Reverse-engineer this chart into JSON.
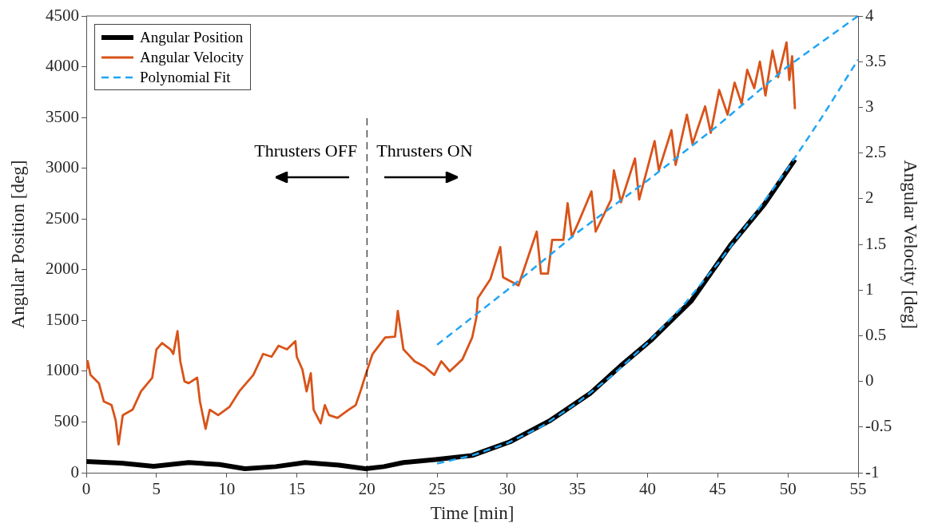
{
  "chart_data": {
    "type": "line",
    "xlabel": "Time [min]",
    "ylabel": "Angular Position [deg]",
    "y2label": "Angular Velocity [deg]",
    "xlim": [
      0,
      55
    ],
    "xticks": [
      0,
      5,
      10,
      15,
      20,
      25,
      30,
      35,
      40,
      45,
      50,
      55
    ],
    "ylim": [
      0,
      4500
    ],
    "yticks": [
      0,
      500,
      1000,
      1500,
      2000,
      2500,
      3000,
      3500,
      4000,
      4500
    ],
    "y2lim": [
      -1,
      4
    ],
    "y2ticks": [
      -1,
      -0.5,
      0,
      0.5,
      1,
      1.5,
      2,
      2.5,
      3,
      3.5,
      4
    ],
    "grid": false,
    "legend": "top left",
    "series": [
      {
        "name": "Angular Position",
        "color": "#000000",
        "x": [
          0,
          2.5,
          4.8,
          7.3,
          9.5,
          11.3,
          13.5,
          15.6,
          18,
          19.9,
          21.2,
          22.6,
          24.9,
          27.5,
          30.2,
          33,
          35.9,
          38.1,
          40.2,
          43.1,
          45.9,
          48.3,
          50.5
        ],
        "values": [
          110,
          95,
          63,
          100,
          80,
          40,
          60,
          100,
          75,
          40,
          60,
          100,
          130,
          170,
          305,
          510,
          780,
          1055,
          1300,
          1690,
          2240,
          2640,
          3085
        ]
      },
      {
        "name": "Angular Velocity",
        "color": "#d95319",
        "axis": "y2",
        "x": [
          0,
          0.1,
          0.3,
          0.9,
          1.25,
          1.8,
          2.1,
          2.3,
          2.6,
          3.3,
          3.9,
          4.7,
          5.0,
          5.4,
          6.0,
          6.2,
          6.5,
          6.7,
          7.0,
          7.3,
          7.9,
          8.1,
          8.5,
          8.8,
          9.4,
          10.2,
          10.9,
          11.9,
          12.6,
          13.2,
          13.7,
          14.3,
          14.9,
          15.0,
          15.4,
          15.7,
          16.0,
          16.2,
          16.7,
          17.0,
          17.3,
          17.9,
          18.7,
          19.2,
          19.6,
          19.9,
          20.4,
          21.3,
          22.0,
          22.2,
          22.6,
          23.4,
          24.1,
          24.8,
          25.3,
          25.9,
          26.8,
          27.5,
          27.8,
          27.9,
          28.8,
          29.5,
          29.7,
          30.8,
          32.1,
          32.4,
          32.9,
          33.2,
          34.0,
          34.3,
          34.6,
          35.1,
          36.0,
          36.3,
          37.4,
          37.6,
          38.1,
          39.1,
          39.4,
          40.5,
          40.8,
          41.7,
          42.0,
          42.8,
          43.2,
          44.1,
          44.5,
          45.1,
          45.7,
          46.2,
          46.7,
          47.1,
          47.6,
          48.0,
          48.4,
          48.9,
          49.3,
          49.9,
          50.1,
          50.3,
          50.5
        ],
        "values": [
          0.13,
          0.22,
          0.07,
          -0.02,
          -0.22,
          -0.26,
          -0.43,
          -0.69,
          -0.37,
          -0.31,
          -0.11,
          0.04,
          0.35,
          0.42,
          0.35,
          0.3,
          0.55,
          0.22,
          0.0,
          -0.02,
          0.04,
          -0.22,
          -0.52,
          -0.31,
          -0.37,
          -0.28,
          -0.11,
          0.07,
          0.3,
          0.27,
          0.39,
          0.35,
          0.44,
          0.27,
          0.13,
          -0.11,
          0.09,
          -0.31,
          -0.46,
          -0.26,
          -0.37,
          -0.4,
          -0.31,
          -0.26,
          -0.08,
          0.07,
          0.3,
          0.48,
          0.49,
          0.77,
          0.35,
          0.22,
          0.16,
          0.07,
          0.22,
          0.11,
          0.24,
          0.48,
          0.7,
          0.91,
          1.12,
          1.47,
          1.14,
          1.05,
          1.64,
          1.18,
          1.18,
          1.55,
          1.55,
          1.95,
          1.58,
          1.75,
          2.08,
          1.64,
          1.99,
          2.31,
          1.96,
          2.44,
          1.99,
          2.63,
          2.31,
          2.75,
          2.37,
          2.92,
          2.6,
          3.01,
          2.72,
          3.19,
          2.92,
          3.27,
          3.04,
          3.41,
          3.21,
          3.5,
          3.13,
          3.62,
          3.33,
          3.71,
          3.3,
          3.56,
          2.98
        ]
      },
      {
        "name": "Polynomial Fit",
        "color": "#1ea5f5",
        "type": "line",
        "line_style": "dashed",
        "x": [
          25,
          27.5,
          30,
          32.5,
          35,
          37.5,
          40,
          42.5,
          45,
          47.5,
          50,
          52.5,
          55
        ],
        "values": [
          90,
          170,
          290,
          460,
          690,
          960,
          1280,
          1640,
          2060,
          2520,
          3000,
          3520,
          4070
        ]
      },
      {
        "color": "#1ea5f5",
        "type": "line",
        "line_style": "dashed",
        "axis": "y2",
        "x": [
          25,
          30,
          35,
          40,
          45,
          50,
          55
        ],
        "values": [
          0.4,
          1.0,
          1.63,
          2.2,
          2.8,
          3.45,
          4.0
        ]
      }
    ],
    "ref_lines": [
      {
        "axis": "x",
        "value": 20,
        "line_style": "dashed",
        "color": "#000000"
      }
    ],
    "annotations": [
      "Thrusters OFF",
      "Thrusters ON"
    ]
  }
}
